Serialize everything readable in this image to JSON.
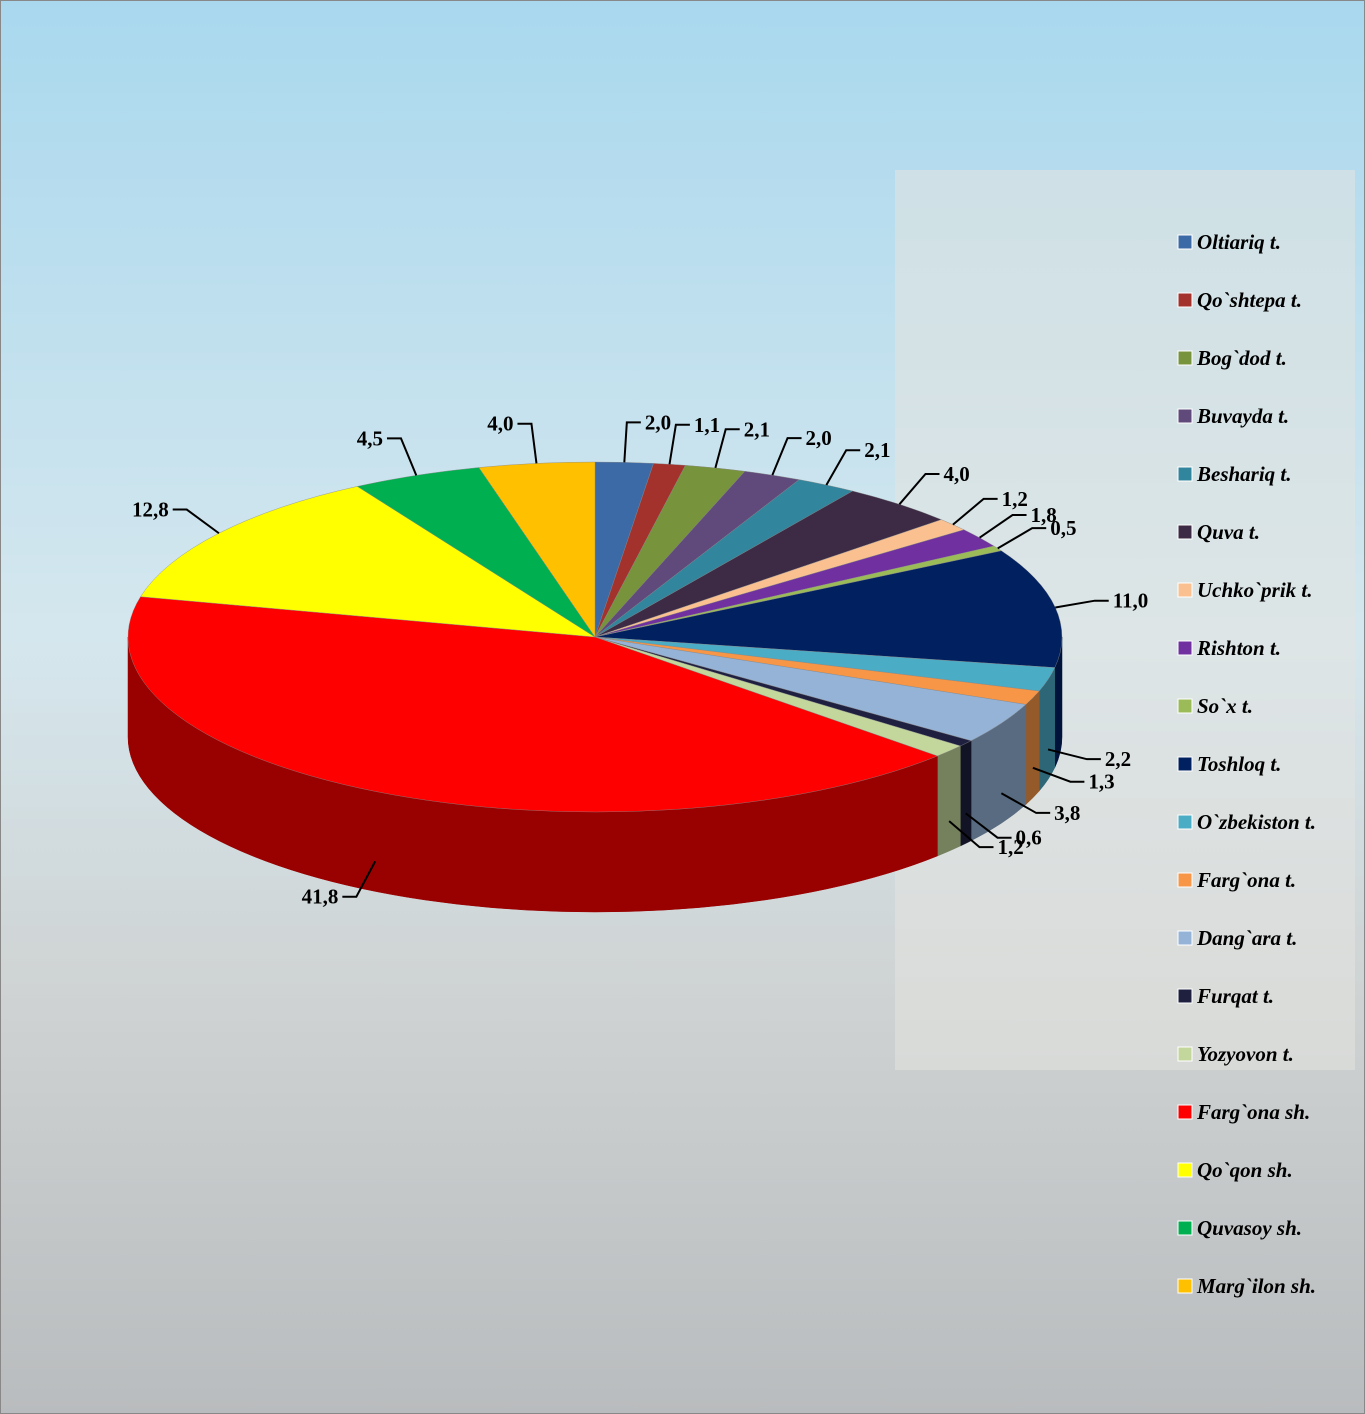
{
  "chart_data": {
    "type": "pie3d",
    "categories": [
      "Oltiariq t.",
      "Qo`shtepa t.",
      "Bog`dod t.",
      "Buvayda t.",
      "Beshariq t.",
      "Quva t.",
      "Uchko`prik t.",
      "Rishton t.",
      "So`x t.",
      "Toshloq t.",
      "O`zbekiston t.",
      "Farg`ona t.",
      "Dang`ara t.",
      "Furqat t.",
      "Yozyovon t.",
      "Farg`ona sh.",
      "Qo`qon sh.",
      "Quvasoy sh.",
      "Marg`ilon sh."
    ],
    "values": [
      2.0,
      1.1,
      2.1,
      2.0,
      2.1,
      4.0,
      1.2,
      1.8,
      0.5,
      11.0,
      2.2,
      1.3,
      3.8,
      0.6,
      1.2,
      41.8,
      12.8,
      4.5,
      4.0
    ],
    "value_labels": [
      "2,0",
      "1,1",
      "2,1",
      "2,0",
      "2,1",
      "4,0",
      "1,2",
      "1,8",
      "0,5",
      "11,0",
      "2,2",
      "1,3",
      "3,8",
      "0,6",
      "1,2",
      "41,8",
      "12,8",
      "4,5",
      "4,0"
    ],
    "colors": [
      "#3b6aa6",
      "#a3312c",
      "#77933c",
      "#604a7b",
      "#31859c",
      "#3d2a45",
      "#fac090",
      "#7030a0",
      "#9bbb59",
      "#002060",
      "#4bacc6",
      "#f79646",
      "#95b3d7",
      "#1f2040",
      "#c3d69b",
      "#ff0000",
      "#ffff00",
      "#00b050",
      "#ffc000"
    ],
    "legend": "right"
  }
}
